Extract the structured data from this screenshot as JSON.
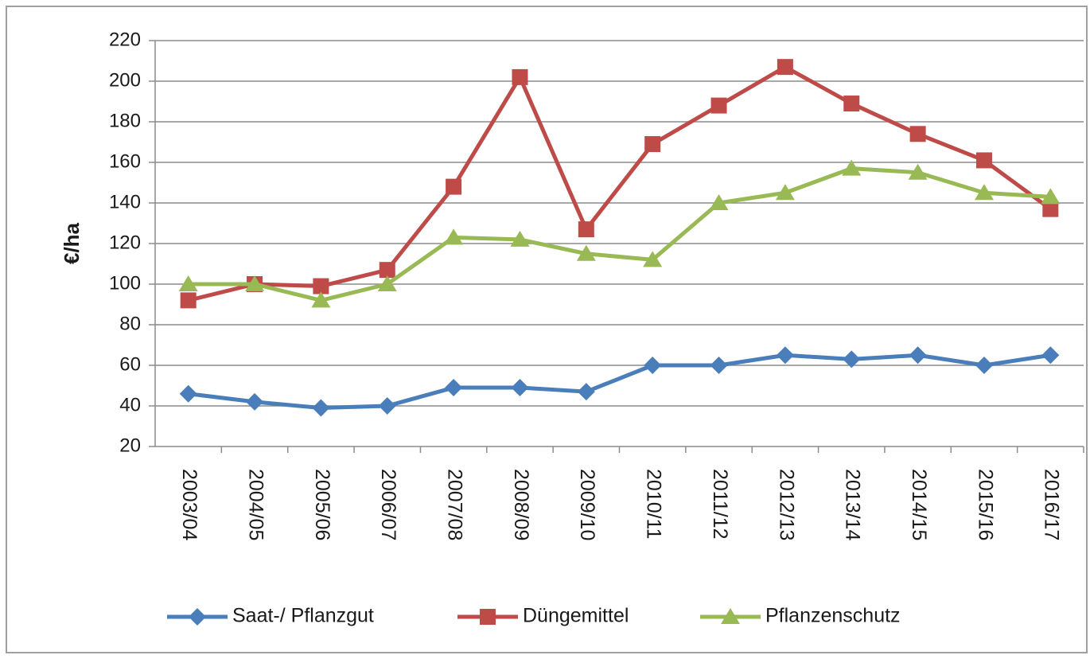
{
  "chart_data": {
    "type": "line",
    "ylabel": "€/ha",
    "categories": [
      "2003/04",
      "2004/05",
      "2005/06",
      "2006/07",
      "2007/08",
      "2008/09",
      "2009/10",
      "2010/11",
      "2011/12",
      "2012/13",
      "2013/14",
      "2014/15",
      "2015/16",
      "2016/17"
    ],
    "series": [
      {
        "name": "Saat-/ Pflanzgut",
        "color": "#4a7ebb",
        "marker": "diamond",
        "values": [
          46,
          42,
          39,
          40,
          49,
          49,
          47,
          60,
          60,
          65,
          63,
          65,
          60,
          65
        ]
      },
      {
        "name": "Düngemittel",
        "color": "#be4b48",
        "marker": "square",
        "values": [
          92,
          100,
          99,
          107,
          148,
          202,
          127,
          169,
          188,
          207,
          189,
          174,
          161,
          137
        ]
      },
      {
        "name": "Pflanzenschutz",
        "color": "#98b954",
        "marker": "triangle",
        "values": [
          100,
          100,
          92,
          100,
          123,
          122,
          115,
          112,
          140,
          145,
          157,
          155,
          145,
          143
        ]
      }
    ],
    "ylim": [
      20,
      220
    ],
    "yticks": [
      20,
      40,
      60,
      80,
      100,
      120,
      140,
      160,
      180,
      200,
      220
    ],
    "grid": true,
    "legend": "bottom"
  }
}
